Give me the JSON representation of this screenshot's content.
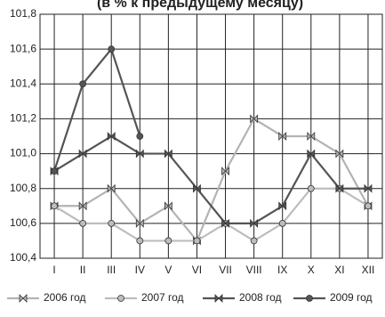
{
  "chart_data": {
    "type": "line",
    "title": "(в % к предыдущему месяцу)",
    "categories": [
      "I",
      "II",
      "III",
      "IV",
      "V",
      "VI",
      "VII",
      "VIII",
      "IX",
      "X",
      "XI",
      "XII"
    ],
    "ylim": [
      100.4,
      101.8
    ],
    "yticks": [
      {
        "value": 100.4,
        "label": "100,4"
      },
      {
        "value": 100.6,
        "label": "100,6"
      },
      {
        "value": 100.8,
        "label": "100,8"
      },
      {
        "value": 101.0,
        "label": "101,0"
      },
      {
        "value": 101.2,
        "label": "101,2"
      },
      {
        "value": 101.4,
        "label": "101,4"
      },
      {
        "value": 101.6,
        "label": "101,6"
      },
      {
        "value": 101.8,
        "label": "101,8"
      }
    ],
    "grid": true,
    "series": [
      {
        "name": "2006 год",
        "color": "#b3b3b3",
        "marker": "star",
        "values": [
          100.7,
          100.7,
          100.8,
          100.6,
          100.7,
          100.5,
          100.9,
          101.2,
          101.1,
          101.1,
          101.0,
          100.7
        ]
      },
      {
        "name": "2007 год",
        "color": "#bdbdbd",
        "marker": "circle",
        "values": [
          100.7,
          100.6,
          100.6,
          100.5,
          100.5,
          100.5,
          100.6,
          100.5,
          100.6,
          100.8,
          100.8,
          100.7
        ]
      },
      {
        "name": "2008 год",
        "color": "#555555",
        "marker": "star",
        "values": [
          100.9,
          101.0,
          101.1,
          101.0,
          101.0,
          100.8,
          100.6,
          100.6,
          100.7,
          101.0,
          100.8,
          100.8
        ]
      },
      {
        "name": "2009 год",
        "color": "#555555",
        "marker": "circle",
        "values": [
          100.9,
          101.4,
          101.6,
          101.1,
          null,
          null,
          null,
          null,
          null,
          null,
          null,
          null
        ]
      }
    ]
  }
}
